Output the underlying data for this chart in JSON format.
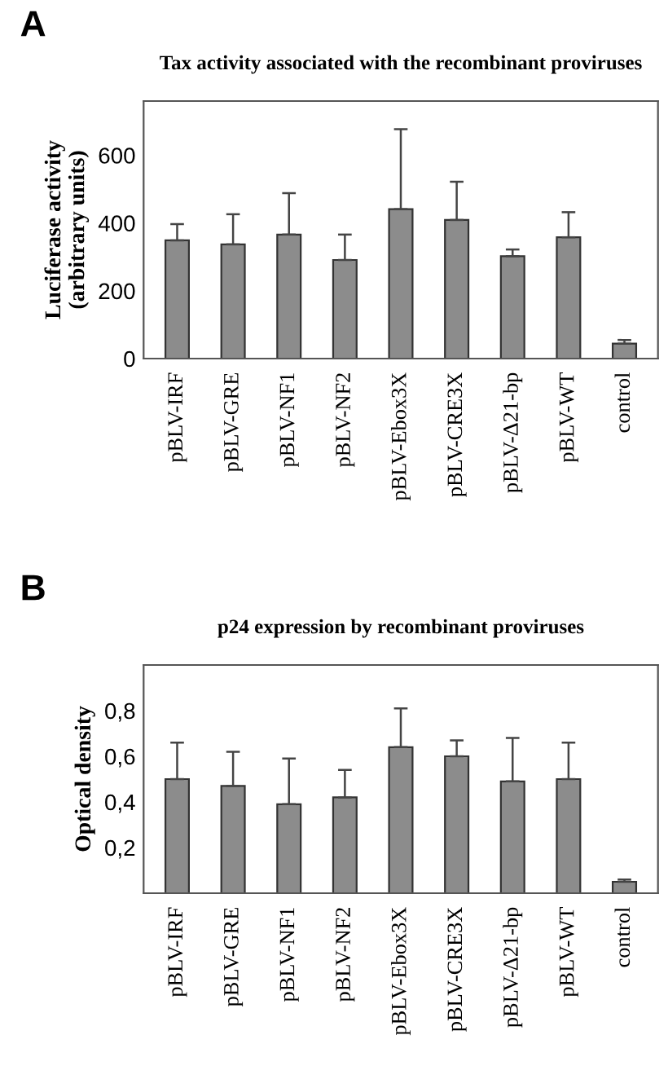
{
  "chart_data": [
    {
      "type": "bar",
      "title": "Tax activity associated with the recombinant proviruses",
      "ylabel": "Luciferase activity\n(arbitrary units)",
      "annotations": [
        "A"
      ],
      "categories": [
        "pBLV-IRF",
        "pBLV-GRE",
        "pBLV-NF1",
        "pBLV-NF2",
        "pBLV-Ebox3X",
        "pBLV-CRE3X",
        "pBLV-Δ21-bp",
        "pBLV-WT",
        "control"
      ],
      "series": [
        {
          "color": "#8c8c8c",
          "values": [
            349,
            337,
            366,
            291,
            441,
            409,
            302,
            358,
            44
          ],
          "errors": [
            [
              349,
              397
            ],
            [
              337,
              426
            ],
            [
              366,
              488
            ],
            [
              291,
              366
            ],
            [
              441,
              677
            ],
            [
              409,
              522
            ],
            [
              302,
              322
            ],
            [
              358,
              432
            ],
            [
              44,
              55
            ]
          ]
        }
      ],
      "ylim": [
        0,
        760
      ],
      "yticks": [
        0,
        200,
        400,
        600
      ],
      "grid": false,
      "legend": false
    },
    {
      "type": "bar",
      "title": "p24 expression by recombinant proviruses",
      "ylabel": "Optical density",
      "annotations": [
        "B"
      ],
      "categories": [
        "pBLV-IRF",
        "pBLV-GRE",
        "pBLV-NF1",
        "pBLV-NF2",
        "pBLV-Ebox3X",
        "pBLV-CRE3X",
        "pBLV-Δ21-bp",
        "pBLV-WT",
        "control"
      ],
      "series": [
        {
          "color": "#8c8c8c",
          "values": [
            0.5,
            0.47,
            0.39,
            0.42,
            0.64,
            0.6,
            0.49,
            0.5,
            0.05
          ],
          "errors": [
            [
              0.5,
              0.66
            ],
            [
              0.47,
              0.62
            ],
            [
              0.39,
              0.59
            ],
            [
              0.42,
              0.54
            ],
            [
              0.64,
              0.81
            ],
            [
              0.6,
              0.67
            ],
            [
              0.49,
              0.68
            ],
            [
              0.5,
              0.66
            ],
            [
              0.05,
              0.06
            ]
          ]
        }
      ],
      "ylim": [
        0,
        1.0
      ],
      "yticks": [
        {
          "value": 0.2,
          "label": "0,2"
        },
        {
          "value": 0.4,
          "label": "0,4"
        },
        {
          "value": 0.6,
          "label": "0,6"
        },
        {
          "value": 0.8,
          "label": "0,8"
        }
      ],
      "grid": false,
      "legend": false
    }
  ]
}
